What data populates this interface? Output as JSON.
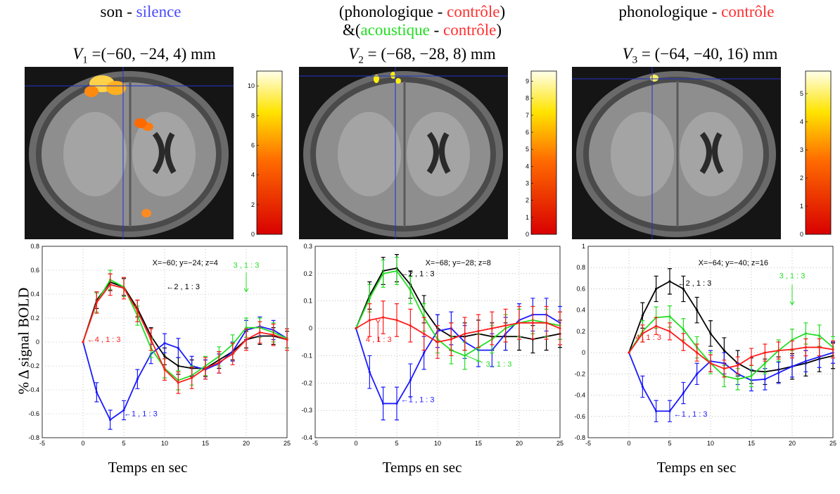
{
  "panels": [
    {
      "title_parts": [
        [
          "son - ",
          "#000"
        ],
        [
          "silence",
          "#4a4aff"
        ]
      ],
      "title2_parts": [],
      "voxel": {
        "v": "V",
        "sub": "1",
        "eq": " =(−60, −24, 4) mm"
      },
      "coords": "X=−60; y=−24; z=4",
      "colorbar": {
        "ticks": [
          "10",
          "8",
          "6",
          "4",
          "2",
          "0"
        ]
      },
      "xlabel": "Temps en sec",
      "labels": {
        "black": "←2 , 1 : 3",
        "blue": "←1 , 1 : 3",
        "red": "←4 , 1 : 3",
        "green": "3 , 1 : 3"
      }
    },
    {
      "title_parts": [
        [
          "(phonologique - ",
          "#000"
        ],
        [
          "contrôle",
          "#ff3030"
        ],
        [
          ")",
          "#000"
        ]
      ],
      "title2_parts": [
        [
          "&(",
          "#000"
        ],
        [
          "acoustique",
          "#22dd22"
        ],
        [
          " - ",
          "#000"
        ],
        [
          "contrôle",
          "#ff3030"
        ],
        [
          ")",
          "#000"
        ]
      ],
      "voxel": {
        "v": "V",
        "sub": "2",
        "eq": " = (−68, −28, 8) mm"
      },
      "coords": "X=−68; y=−28; z=8",
      "colorbar": {
        "ticks": [
          "9",
          "8",
          "7",
          "6",
          "5",
          "4",
          "3",
          "2",
          "1",
          "0"
        ]
      },
      "xlabel": "Temps en sec",
      "labels": {
        "black": "←2 , 1 : 3",
        "blue": "←1 , 1 : 3",
        "red": "4 , 1 : 3",
        "green": "3 , 1 : 3"
      }
    },
    {
      "title_parts": [
        [
          "phonologique - ",
          "#000"
        ],
        [
          "contrôle",
          "#ff3030"
        ]
      ],
      "title2_parts": [],
      "voxel": {
        "v": "V",
        "sub": "3",
        "eq": " = (−64, −40, 16) mm"
      },
      "coords": "X=−64; y=−40; z=16",
      "colorbar": {
        "ticks": [
          "5",
          "4",
          "3",
          "2",
          "1",
          "0"
        ]
      },
      "xlabel": "Temps en sec",
      "labels": {
        "black": "←2 , 1 : 3",
        "blue": "←1 , 1 : 3",
        "red": "4 , 1 : 3",
        "green": "3 , 1 : 3"
      }
    }
  ],
  "ylabel": "% Δ signal BOLD",
  "colors": {
    "black": "#000000",
    "blue": "#1a1aff",
    "red": "#ff1a1a",
    "green": "#22dd22"
  },
  "chart_data": [
    {
      "type": "line",
      "xlim": [
        -5,
        25
      ],
      "ylim": [
        -0.8,
        0.8
      ],
      "xticks": [
        -5,
        0,
        5,
        10,
        15,
        20,
        25
      ],
      "yticks": [
        -0.8,
        -0.6,
        -0.4,
        -0.2,
        0,
        0.2,
        0.4,
        0.6,
        0.8
      ],
      "grid": true,
      "x": [
        0,
        1.67,
        3.33,
        5,
        6.67,
        8.33,
        10,
        11.67,
        13.33,
        15,
        16.67,
        18.33,
        20,
        21.67,
        23.33,
        25
      ],
      "series": [
        {
          "color_key": "black",
          "values": [
            0,
            0.35,
            0.5,
            0.46,
            0.28,
            0.05,
            -0.12,
            -0.2,
            -0.22,
            -0.22,
            -0.15,
            -0.08,
            0.02,
            0.05,
            0.05,
            0.02
          ],
          "err": 0.07
        },
        {
          "color_key": "blue",
          "values": [
            0,
            -0.42,
            -0.65,
            -0.57,
            -0.31,
            -0.1,
            -0.01,
            -0.05,
            -0.2,
            -0.23,
            -0.18,
            -0.08,
            0.1,
            0.13,
            0.1,
            0.03
          ],
          "err": 0.08
        },
        {
          "color_key": "green",
          "values": [
            0,
            0.33,
            0.52,
            0.46,
            0.22,
            -0.05,
            -0.22,
            -0.32,
            -0.28,
            -0.2,
            -0.12,
            -0.02,
            0.12,
            0.12,
            0.08,
            0.03
          ],
          "err": 0.08
        },
        {
          "color_key": "red",
          "values": [
            0,
            0.33,
            0.48,
            0.45,
            0.26,
            0.02,
            -0.23,
            -0.34,
            -0.3,
            -0.22,
            -0.17,
            -0.1,
            0.02,
            0.08,
            0.06,
            0.02
          ],
          "err": 0.09
        }
      ]
    },
    {
      "type": "line",
      "xlim": [
        -5,
        25
      ],
      "ylim": [
        -0.4,
        0.3
      ],
      "xticks": [
        -5,
        0,
        5,
        10,
        15,
        20,
        25
      ],
      "yticks": [
        -0.4,
        -0.3,
        -0.2,
        -0.1,
        0,
        0.1,
        0.2,
        0.3
      ],
      "grid": true,
      "x": [
        0,
        1.67,
        3.33,
        5,
        6.67,
        8.33,
        10,
        11.67,
        13.33,
        15,
        16.67,
        18.33,
        20,
        21.67,
        23.33,
        25
      ],
      "series": [
        {
          "color_key": "black",
          "values": [
            0,
            0.12,
            0.21,
            0.22,
            0.16,
            0.07,
            0.0,
            -0.03,
            -0.03,
            -0.02,
            -0.03,
            -0.03,
            -0.03,
            -0.04,
            -0.03,
            -0.02
          ],
          "err": 0.05
        },
        {
          "color_key": "blue",
          "values": [
            0,
            -0.16,
            -0.275,
            -0.275,
            -0.19,
            -0.09,
            -0.01,
            0.0,
            -0.05,
            -0.08,
            -0.08,
            -0.02,
            0.03,
            0.05,
            0.05,
            0.02
          ],
          "err": 0.06
        },
        {
          "color_key": "green",
          "values": [
            0,
            0.11,
            0.2,
            0.21,
            0.14,
            0.04,
            -0.04,
            -0.08,
            -0.1,
            -0.07,
            -0.04,
            0.0,
            0.02,
            0.03,
            0.02,
            0.01
          ],
          "err": 0.05
        },
        {
          "color_key": "red",
          "values": [
            0,
            0.03,
            0.04,
            0.03,
            0.01,
            -0.02,
            -0.05,
            -0.04,
            -0.02,
            -0.01,
            0.0,
            0.01,
            0.02,
            0.02,
            0.02,
            0.0
          ],
          "err": 0.06
        }
      ]
    },
    {
      "type": "line",
      "xlim": [
        -5,
        25
      ],
      "ylim": [
        -0.8,
        1.0
      ],
      "xticks": [
        -5,
        0,
        5,
        10,
        15,
        20,
        25
      ],
      "yticks": [
        -0.8,
        -0.6,
        -0.4,
        -0.2,
        0,
        0.2,
        0.4,
        0.6,
        0.8,
        1
      ],
      "grid": true,
      "x": [
        0,
        1.67,
        3.33,
        5,
        6.67,
        8.33,
        10,
        11.67,
        13.33,
        15,
        16.67,
        18.33,
        20,
        21.67,
        23.33,
        25
      ],
      "series": [
        {
          "color_key": "black",
          "values": [
            0,
            0.35,
            0.6,
            0.67,
            0.6,
            0.4,
            0.18,
            0.02,
            -0.1,
            -0.17,
            -0.18,
            -0.16,
            -0.13,
            -0.1,
            -0.06,
            -0.03
          ],
          "err": 0.12
        },
        {
          "color_key": "blue",
          "values": [
            0,
            -0.32,
            -0.55,
            -0.55,
            -0.38,
            -0.2,
            -0.08,
            -0.1,
            -0.2,
            -0.26,
            -0.25,
            -0.19,
            -0.13,
            -0.08,
            -0.04,
            0.0
          ],
          "err": 0.1
        },
        {
          "color_key": "green",
          "values": [
            0,
            0.2,
            0.33,
            0.34,
            0.22,
            0.05,
            -0.1,
            -0.22,
            -0.25,
            -0.22,
            -0.1,
            0.02,
            0.12,
            0.18,
            0.16,
            0.05
          ],
          "err": 0.1
        },
        {
          "color_key": "red",
          "values": [
            0,
            0.18,
            0.25,
            0.2,
            0.1,
            0.0,
            -0.1,
            -0.15,
            -0.12,
            -0.04,
            0.0,
            0.02,
            0.03,
            0.05,
            0.05,
            0.03
          ],
          "err": 0.08
        }
      ]
    }
  ]
}
